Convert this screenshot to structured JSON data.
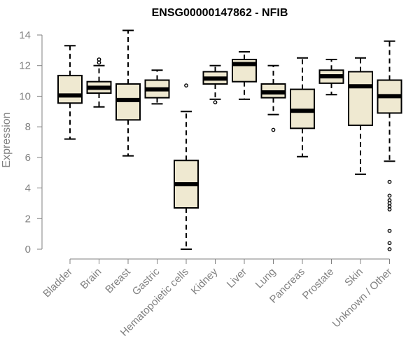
{
  "chart_data": {
    "type": "boxplot",
    "title": "ENSG00000147862 - NFIB",
    "xlabel": "",
    "ylabel": "Expression",
    "ylim": [
      0,
      14
    ],
    "yticks": [
      0,
      2,
      4,
      6,
      8,
      10,
      12,
      14
    ],
    "grid": false,
    "legend": "none",
    "colors": {
      "box_fill": "#efe9d1",
      "stroke": "#000000",
      "axis": "#808080",
      "tick_text": "#808080"
    },
    "categories": [
      "Bladder",
      "Brain",
      "Breast",
      "Gastric",
      "Hematopoietic cells",
      "Kidney",
      "Liver",
      "Lung",
      "Pancreas",
      "Prostate",
      "Skin",
      "Unknown / Other"
    ],
    "boxes": [
      {
        "label": "Bladder",
        "whisker_low": 7.2,
        "q1": 9.55,
        "median": 10.05,
        "q3": 11.35,
        "whisker_high": 13.3,
        "outliers": []
      },
      {
        "label": "Brain",
        "whisker_low": 9.3,
        "q1": 10.2,
        "median": 10.55,
        "q3": 10.95,
        "whisker_high": 12.0,
        "outliers": [
          12.2,
          12.4
        ]
      },
      {
        "label": "Breast",
        "whisker_low": 6.1,
        "q1": 8.45,
        "median": 9.75,
        "q3": 10.8,
        "whisker_high": 14.3,
        "outliers": []
      },
      {
        "label": "Gastric",
        "whisker_low": 9.5,
        "q1": 9.9,
        "median": 10.45,
        "q3": 11.05,
        "whisker_high": 11.7,
        "outliers": []
      },
      {
        "label": "Hematopoietic cells",
        "whisker_low": 0.0,
        "q1": 2.7,
        "median": 4.25,
        "q3": 5.8,
        "whisker_high": 9.0,
        "outliers": [
          10.7
        ]
      },
      {
        "label": "Kidney",
        "whisker_low": 9.8,
        "q1": 10.8,
        "median": 11.15,
        "q3": 11.6,
        "whisker_high": 12.0,
        "outliers": [
          9.6
        ]
      },
      {
        "label": "Liver",
        "whisker_low": 9.8,
        "q1": 10.95,
        "median": 12.1,
        "q3": 12.4,
        "whisker_high": 12.9,
        "outliers": []
      },
      {
        "label": "Lung",
        "whisker_low": 8.8,
        "q1": 9.9,
        "median": 10.25,
        "q3": 10.8,
        "whisker_high": 12.0,
        "outliers": [
          7.8
        ]
      },
      {
        "label": "Pancreas",
        "whisker_low": 6.05,
        "q1": 7.9,
        "median": 9.05,
        "q3": 10.45,
        "whisker_high": 12.5,
        "outliers": []
      },
      {
        "label": "Prostate",
        "whisker_low": 10.1,
        "q1": 10.85,
        "median": 11.3,
        "q3": 11.7,
        "whisker_high": 12.4,
        "outliers": []
      },
      {
        "label": "Skin",
        "whisker_low": 4.9,
        "q1": 8.1,
        "median": 10.65,
        "q3": 11.6,
        "whisker_high": 12.5,
        "outliers": []
      },
      {
        "label": "Unknown / Other",
        "whisker_low": 5.75,
        "q1": 8.9,
        "median": 10.0,
        "q3": 11.05,
        "whisker_high": 13.6,
        "outliers": [
          4.4,
          3.5,
          3.2,
          3.0,
          2.8,
          2.6,
          1.2,
          0.4,
          0.0
        ]
      }
    ]
  }
}
